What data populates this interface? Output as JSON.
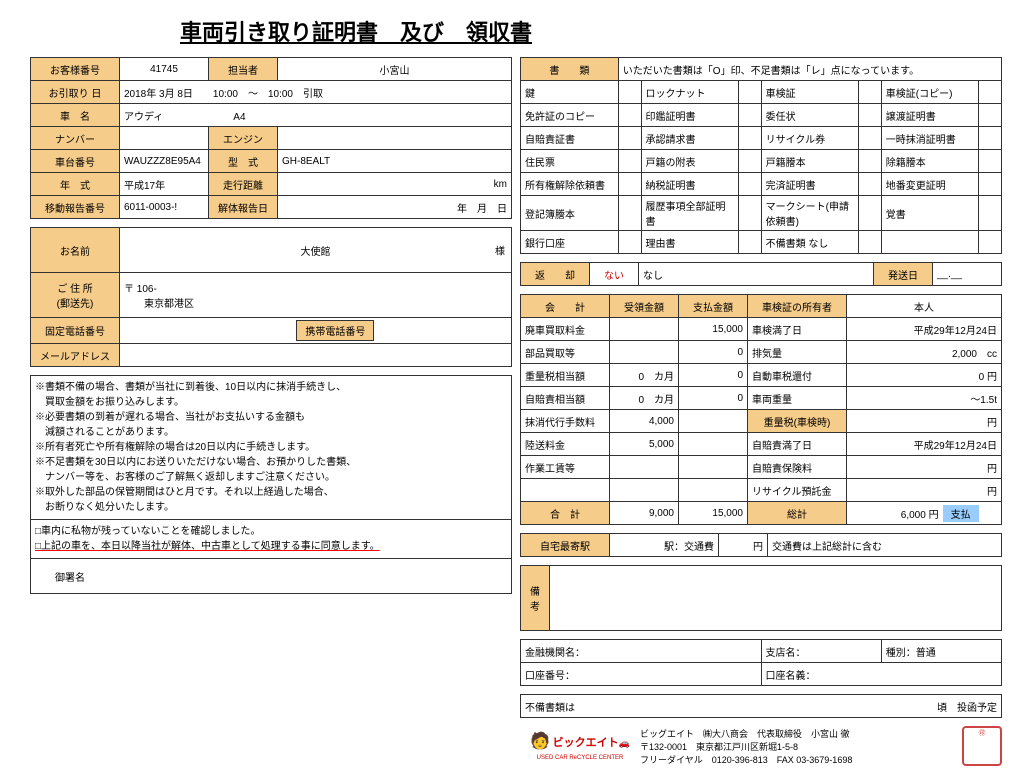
{
  "title": "車両引き取り証明書　及び　領収書",
  "l": {
    "custNo": {
      "lbl": "お客様番号",
      "val": "41745"
    },
    "staff": {
      "lbl": "担当者",
      "val": "小宮山"
    },
    "pickup": {
      "lbl": "お引取り 日",
      "val": "2018年 3月 8日　　10:00　〜　10:00　引取"
    },
    "carName": {
      "lbl": "車　名",
      "val": "アウディ　　　　　　　A4"
    },
    "number": {
      "lbl": "ナンバー",
      "val": ""
    },
    "engine": {
      "lbl": "エンジン",
      "val": ""
    },
    "chassis": {
      "lbl": "車台番号",
      "val": "WAUZZZ8E95A4"
    },
    "model": {
      "lbl": "型　式",
      "val": "GH-8EALT"
    },
    "year": {
      "lbl": "年　式",
      "val": "平成17年"
    },
    "mileage": {
      "lbl": "走行距離",
      "val": "km"
    },
    "moveRep": {
      "lbl": "移動報告番号",
      "val": "6011-0003-!"
    },
    "dismRep": {
      "lbl": "解体報告日",
      "val": "年　月　日"
    },
    "name": {
      "lbl": "お名前",
      "val": "大使館",
      "suf": "様"
    },
    "addr": {
      "lbl": "ご 住 所\n(郵送先)",
      "zip": "〒 106-",
      "val": "東京都港区"
    },
    "tel": {
      "lbl": "固定電話番号",
      "val": ""
    },
    "mob": {
      "lbl": "携帯電話番号",
      "val": ""
    },
    "mail": {
      "lbl": "メールアドレス",
      "val": ""
    },
    "notes": [
      "※書類不備の場合、書類が当社に到着後、10日以内に抹消手続きし、",
      "　買取金額をお振り込みします。",
      "※必要書類の到着が遅れる場合、当社がお支払いする金額も",
      "　減額されることがあります。",
      "※所有者死亡や所有権解除の場合は20日以内に手続きします。",
      "※不足書類を30日以内にお送りいただけない場合、お預かりした書類、",
      "　ナンバー等を、お客様のご了解無く返却しますご注意ください。",
      "※取外した部品の保管期間はひと月です。それ以上経過した場合、",
      "　お断りなく処分いたします。"
    ],
    "cb1": "□車内に私物が残っていないことを確認しました。",
    "cb2": "□上記の車を、本日以降当社が解体、中古車として処理する事に同意します。",
    "sign": "御署名"
  },
  "r": {
    "docHdr": {
      "lbl": "書　　類",
      "note": "いただいた書類は「O」印、不足書類は「レ」点になっています。"
    },
    "docs": [
      [
        "鍵",
        "ロックナット",
        "車検証",
        "車検証(コピー)"
      ],
      [
        "免許証のコピー",
        "印鑑証明書",
        "委任状",
        "譲渡証明書"
      ],
      [
        "自賠責証書",
        "承認請求書",
        "リサイクル券",
        "一時抹消証明書"
      ],
      [
        "住民票",
        "戸籍の附表",
        "戸籍謄本",
        "除籍謄本"
      ],
      [
        "所有権解除依頼書",
        "納税証明書",
        "完済証明書",
        "地番変更証明"
      ],
      [
        "登記簿謄本",
        "履歴事項全部証明書",
        "マークシート(申請依頼書)",
        "覚書"
      ],
      [
        "銀行口座",
        "理由書",
        "不備書類 なし",
        ""
      ]
    ],
    "ret": {
      "lbl": "返　　却",
      "nai": "ない",
      "nashi": "なし",
      "ship": "発送日",
      "shipVal": "__.__"
    },
    "acc": {
      "hdr": "会　　計",
      "col1": "受領金額",
      "col2": "支払金額",
      "owner": "車検証の所有者",
      "ownerVal": "本人"
    },
    "rows": [
      {
        "k": "廃車買取料金",
        "a": "",
        "b": "15,000",
        "k2": "車検満了日",
        "v2": "平成29年12月24日"
      },
      {
        "k": "部品買取等",
        "a": "",
        "b": "0",
        "k2": "排気量",
        "v2": "2,000　cc"
      },
      {
        "k": "重量税相当額",
        "a": "0",
        "a2": "カ月",
        "b": "0",
        "k2": "自動車税還付",
        "v2": "0 円"
      },
      {
        "k": "自賠責相当額",
        "a": "0",
        "a2": "カ月",
        "b": "0",
        "k2": "車両重量",
        "v2": "〜1.5t"
      },
      {
        "k": "抹消代行手数料",
        "a": "4,000",
        "b": "",
        "k2": "重量税(車検時)",
        "v2": "円",
        "k2lbl": true
      },
      {
        "k": "陸送料金",
        "a": "5,000",
        "b": "",
        "k2": "自賠責満了日",
        "v2": "平成29年12月24日"
      },
      {
        "k": "作業工賃等",
        "a": "",
        "b": "",
        "k2": "自賠責保険料",
        "v2": "円"
      },
      {
        "k": "",
        "a": "",
        "b": "",
        "k2": "リサイクル預託金",
        "v2": "円"
      }
    ],
    "tot": {
      "lbl": "合　計",
      "a": "9,000",
      "b": "15,000",
      "gt": "総計",
      "gtv": "6,000 円",
      "pay": "支払"
    },
    "sta": {
      "lbl": "自宅最寄駅",
      "ekilbl": "駅：交通費",
      "yen": "円",
      "note": "交通費は上記総計に含む"
    },
    "remark": "備\n考",
    "bank": {
      "inst": "金融機関名：",
      "br": "支店名：",
      "type": "種別：普通",
      "acct": "口座番号：",
      "name": "口座名義："
    },
    "deficit": {
      "lbl": "不備書類は",
      "suf": "頃　投函予定"
    },
    "foot": {
      "logo": "ビックエイト",
      "sub": "USED CAR ReCYCLE CENTER",
      "l1": "ビッグエイト　㈱大八商会　代表取締役　小宮山 徹",
      "l2": "〒132-0001　東京都江戸川区新堀1-5-8",
      "l3": "フリーダイヤル　0120-396-813　FAX 03-3679-1698"
    }
  }
}
